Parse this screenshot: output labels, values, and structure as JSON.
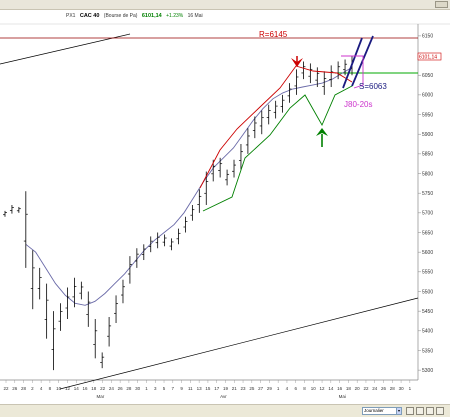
{
  "header": {
    "index": "PX1",
    "ticker": "CAC 40",
    "exchange": "(Bourse de Pa)",
    "price": "6101,14",
    "change": "+1.23%",
    "date": "16 Mai"
  },
  "statusbar": {
    "period": "Journalier"
  },
  "colors": {
    "candles": "#000000",
    "moving_average": "#6a6aa8",
    "red_envelope": "#cc0000",
    "green_envelope": "#008000",
    "resistance_line": "#990000",
    "support_line": "#00aa00",
    "projection": "#1a1a80",
    "target_box": "#cc33cc",
    "trendline": "#000000"
  },
  "chart_data": {
    "type": "candlestick",
    "y_ticks": [
      {
        "label": "6150",
        "value": 6150
      },
      {
        "label": "6100",
        "value": 6100
      },
      {
        "label": "6050",
        "value": 6050
      },
      {
        "label": "6000",
        "value": 6000
      },
      {
        "label": "5950",
        "value": 5950
      },
      {
        "label": "5900",
        "value": 5900
      },
      {
        "label": "5850",
        "value": 5850
      },
      {
        "label": "5800",
        "value": 5800
      },
      {
        "label": "5750",
        "value": 5750
      },
      {
        "label": "5700",
        "value": 5700
      },
      {
        "label": "5650",
        "value": 5650
      },
      {
        "label": "5600",
        "value": 5600
      },
      {
        "label": "5550",
        "value": 5550
      },
      {
        "label": "5500",
        "value": 5500
      },
      {
        "label": "5450",
        "value": 5450
      },
      {
        "label": "5400",
        "value": 5400
      },
      {
        "label": "5350",
        "value": 5350
      },
      {
        "label": "5300",
        "value": 5300
      }
    ],
    "ylim": [
      5280,
      6165
    ],
    "x_ticks": [
      "22",
      "26",
      "28",
      "2",
      "4",
      "8",
      "10",
      "12",
      "14",
      "16",
      "18",
      "22",
      "24",
      "26",
      "28",
      "30",
      "1",
      "3",
      "5",
      "7",
      "9",
      "11",
      "13",
      "15",
      "17",
      "19",
      "21",
      "23",
      "25",
      "27",
      "29",
      "1",
      "4",
      "6",
      "8",
      "10",
      "12",
      "14",
      "16",
      "18",
      "20",
      "22",
      "24",
      "26",
      "28",
      "30",
      "1"
    ],
    "x_month_labels": [
      "Mar",
      "Avr",
      "Mai"
    ],
    "last_price_tag": "6101,14",
    "annotations": {
      "resistance": "R=6145",
      "support": "S=6063",
      "target": "J80-20s"
    },
    "candles": [
      {
        "h": 5705,
        "l": 5690
      },
      {
        "h": 5720,
        "l": 5698
      },
      {
        "h": 5715,
        "l": 5700
      },
      {
        "h": 5755,
        "l": 5560
      },
      {
        "h": 5605,
        "l": 5455
      },
      {
        "h": 5560,
        "l": 5480
      },
      {
        "h": 5520,
        "l": 5380
      },
      {
        "h": 5450,
        "l": 5300
      },
      {
        "h": 5470,
        "l": 5400
      },
      {
        "h": 5510,
        "l": 5430
      },
      {
        "h": 5535,
        "l": 5460
      },
      {
        "h": 5525,
        "l": 5480
      },
      {
        "h": 5500,
        "l": 5410
      },
      {
        "h": 5430,
        "l": 5330
      },
      {
        "h": 5345,
        "l": 5305
      },
      {
        "h": 5435,
        "l": 5360
      },
      {
        "h": 5490,
        "l": 5420
      },
      {
        "h": 5530,
        "l": 5470
      },
      {
        "h": 5590,
        "l": 5520
      },
      {
        "h": 5610,
        "l": 5560
      },
      {
        "h": 5620,
        "l": 5580
      },
      {
        "h": 5640,
        "l": 5600
      },
      {
        "h": 5650,
        "l": 5610
      },
      {
        "h": 5645,
        "l": 5615
      },
      {
        "h": 5635,
        "l": 5605
      },
      {
        "h": 5660,
        "l": 5620
      },
      {
        "h": 5690,
        "l": 5650
      },
      {
        "h": 5720,
        "l": 5680
      },
      {
        "h": 5760,
        "l": 5700
      },
      {
        "h": 5805,
        "l": 5720
      },
      {
        "h": 5835,
        "l": 5780
      },
      {
        "h": 5840,
        "l": 5790
      },
      {
        "h": 5810,
        "l": 5770
      },
      {
        "h": 5835,
        "l": 5790
      },
      {
        "h": 5875,
        "l": 5810
      },
      {
        "h": 5915,
        "l": 5850
      },
      {
        "h": 5945,
        "l": 5890
      },
      {
        "h": 5960,
        "l": 5900
      },
      {
        "h": 5975,
        "l": 5925
      },
      {
        "h": 5985,
        "l": 5940
      },
      {
        "h": 6000,
        "l": 5955
      },
      {
        "h": 6030,
        "l": 5980
      },
      {
        "h": 6065,
        "l": 6000
      },
      {
        "h": 6085,
        "l": 6040
      },
      {
        "h": 6080,
        "l": 6030
      },
      {
        "h": 6070,
        "l": 6020
      },
      {
        "h": 6060,
        "l": 6000
      },
      {
        "h": 6075,
        "l": 6020
      },
      {
        "h": 6085,
        "l": 6040
      },
      {
        "h": 6090,
        "l": 6050
      },
      {
        "h": 6100,
        "l": 6050
      }
    ],
    "moving_average": [
      5620,
      5600,
      5560,
      5520,
      5490,
      5470,
      5465,
      5475,
      5495,
      5520,
      5545,
      5575,
      5605,
      5630,
      5650,
      5670,
      5700,
      5740,
      5780,
      5815,
      5840,
      5865,
      5900,
      5935,
      5965,
      5990,
      6005,
      6015,
      6020,
      6025,
      6030,
      6040,
      6055,
      6070
    ]
  }
}
